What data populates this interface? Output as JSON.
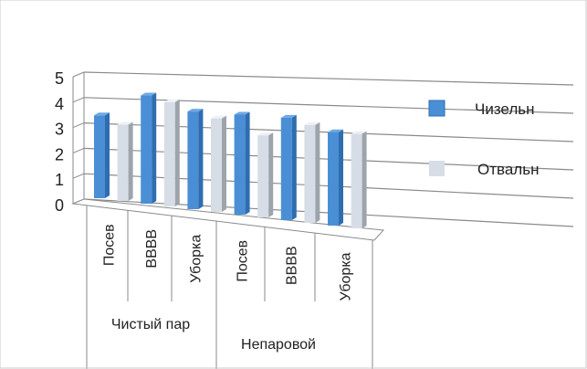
{
  "chart_data": {
    "type": "bar",
    "style": "3d-clustered-column",
    "groups": [
      {
        "label": "Чистый пар",
        "categories": [
          "Посев",
          "ВВВВ",
          "Уборка"
        ]
      },
      {
        "label": "Непаровой",
        "categories": [
          "Посев",
          "ВВВВ",
          "Уборка"
        ]
      }
    ],
    "series": [
      {
        "name": "Чизельн",
        "color": "#4a8fd6",
        "values": [
          3.3,
          4.2,
          3.7,
          3.7,
          3.7,
          3.3
        ]
      },
      {
        "name": "Отвальн",
        "color": "#d7dde6",
        "values": [
          3.0,
          4.0,
          3.5,
          3.0,
          3.5,
          3.3
        ]
      }
    ],
    "y_ticks": [
      "0",
      "1",
      "2",
      "3",
      "4",
      "5"
    ],
    "ylim": [
      0,
      5
    ],
    "grid": true,
    "legend": "right"
  }
}
